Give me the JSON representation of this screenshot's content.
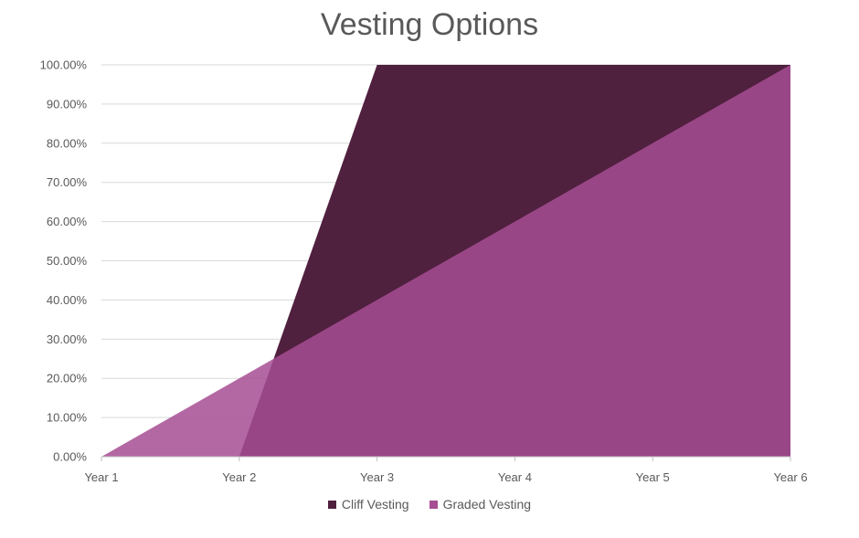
{
  "chart_data": {
    "type": "area",
    "title": "Vesting Options",
    "categories": [
      "Year 1",
      "Year 2",
      "Year 3",
      "Year 4",
      "Year 5",
      "Year 6"
    ],
    "ylim": [
      0,
      100
    ],
    "y_ticks": [
      "0.00%",
      "10.00%",
      "20.00%",
      "30.00%",
      "40.00%",
      "50.00%",
      "60.00%",
      "70.00%",
      "80.00%",
      "90.00%",
      "100.00%"
    ],
    "grid": true,
    "legend_position": "bottom",
    "series": [
      {
        "name": "Cliff Vesting",
        "values": [
          0,
          0,
          100,
          100,
          100,
          100
        ],
        "color": "#50203F"
      },
      {
        "name": "Graded Vesting",
        "values": [
          0,
          20,
          40,
          60,
          80,
          100
        ],
        "color": "#A64D93"
      }
    ]
  }
}
